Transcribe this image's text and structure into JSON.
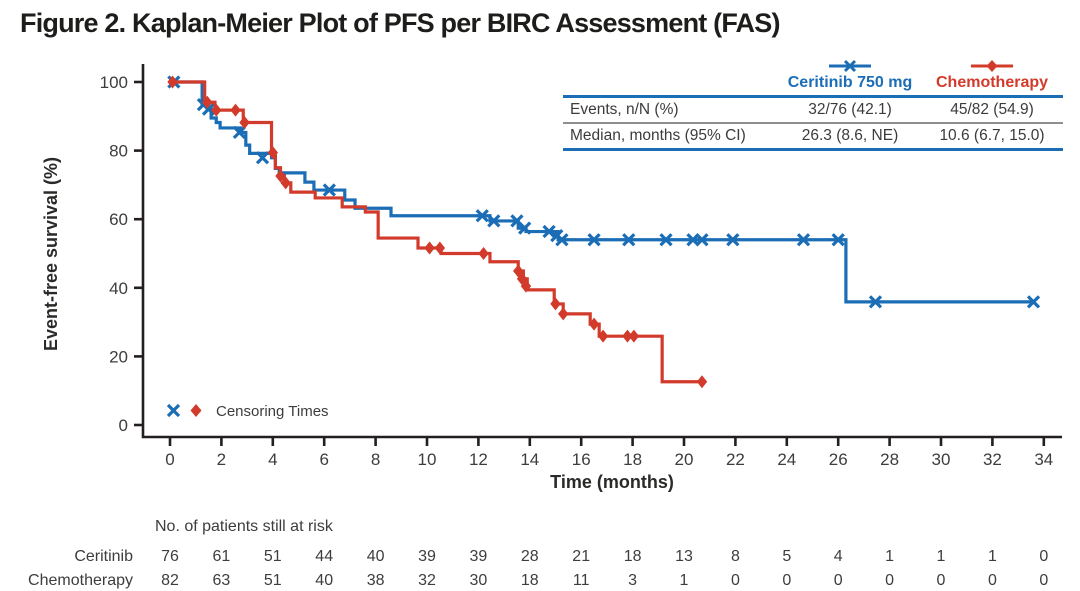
{
  "title": "Figure 2. Kaplan-Meier Plot of PFS per BIRC Assessment (FAS)",
  "colors": {
    "ceritinib": "#1b6db5",
    "chemotherapy": "#d23b2b",
    "axis": "#231f20",
    "text": "#3b3b3b",
    "rule_gray": "#8f8f8f"
  },
  "chart_data": {
    "type": "line",
    "subtype": "kaplan-meier-step",
    "title": "Figure 2. Kaplan-Meier Plot of PFS per BIRC Assessment (FAS)",
    "xlabel": "Time (months)",
    "ylabel": "Event-free survival (%)",
    "xlim": [
      0,
      34
    ],
    "ylim": [
      0,
      100
    ],
    "xticks": [
      0,
      2,
      4,
      6,
      8,
      10,
      12,
      14,
      16,
      18,
      20,
      22,
      24,
      26,
      28,
      30,
      32,
      34
    ],
    "yticks": [
      0,
      20,
      40,
      60,
      80,
      100
    ],
    "grid": false,
    "legend_position": "top-right",
    "censor_legend_label": "Censoring Times",
    "series": [
      {
        "name": "Ceritinib 750 mg",
        "color": "#1b6db5",
        "marker": "x",
        "steps": [
          [
            0,
            100
          ],
          [
            1.25,
            93.4
          ],
          [
            1.45,
            92.1
          ],
          [
            1.6,
            89.5
          ],
          [
            1.8,
            88.2
          ],
          [
            1.95,
            86.6
          ],
          [
            2.75,
            85.3
          ],
          [
            2.95,
            81.6
          ],
          [
            3.1,
            79.2
          ],
          [
            3.95,
            77.9
          ],
          [
            4.1,
            74.8
          ],
          [
            4.25,
            73.5
          ],
          [
            5.25,
            70.8
          ],
          [
            5.6,
            68.5
          ],
          [
            6.8,
            65.6
          ],
          [
            7.2,
            63.2
          ],
          [
            8.6,
            61.0
          ],
          [
            12.45,
            59.5
          ],
          [
            13.55,
            57.4
          ],
          [
            13.85,
            56.4
          ],
          [
            15.1,
            54.0
          ],
          [
            26.3,
            35.9
          ]
        ],
        "end_t": 33.6,
        "censors": [
          [
            0.15,
            100
          ],
          [
            1.3,
            93.4
          ],
          [
            1.5,
            92.1
          ],
          [
            2.7,
            85.3
          ],
          [
            3.6,
            77.9
          ],
          [
            6.2,
            68.5
          ],
          [
            12.15,
            61.0
          ],
          [
            12.6,
            59.5
          ],
          [
            13.5,
            59.5
          ],
          [
            13.8,
            57.4
          ],
          [
            14.75,
            56.4
          ],
          [
            15.05,
            55.2
          ],
          [
            15.25,
            54.0
          ],
          [
            16.5,
            54.0
          ],
          [
            17.85,
            54.0
          ],
          [
            19.3,
            54.0
          ],
          [
            20.35,
            54.0
          ],
          [
            20.7,
            54.0
          ],
          [
            21.9,
            54.0
          ],
          [
            24.65,
            54.0
          ],
          [
            26.0,
            54.0
          ],
          [
            27.45,
            35.9
          ],
          [
            33.6,
            35.9
          ]
        ]
      },
      {
        "name": "Chemotherapy",
        "color": "#d23b2b",
        "marker": "diamond",
        "steps": [
          [
            0,
            100
          ],
          [
            1.35,
            94.1
          ],
          [
            1.75,
            91.8
          ],
          [
            2.85,
            88.2
          ],
          [
            3.95,
            79.4
          ],
          [
            4.1,
            75.0
          ],
          [
            4.3,
            72.6
          ],
          [
            4.45,
            70.6
          ],
          [
            4.7,
            67.9
          ],
          [
            5.65,
            66.2
          ],
          [
            6.7,
            63.6
          ],
          [
            7.6,
            62.1
          ],
          [
            8.1,
            54.5
          ],
          [
            9.65,
            51.6
          ],
          [
            10.55,
            50.0
          ],
          [
            12.45,
            47.6
          ],
          [
            13.55,
            44.9
          ],
          [
            13.75,
            42.6
          ],
          [
            13.9,
            39.4
          ],
          [
            14.95,
            35.3
          ],
          [
            15.3,
            32.4
          ],
          [
            16.35,
            29.4
          ],
          [
            16.7,
            25.9
          ],
          [
            19.15,
            12.6
          ]
        ],
        "end_t": 20.7,
        "censors": [
          [
            0.1,
            100
          ],
          [
            1.45,
            94.1
          ],
          [
            1.8,
            91.8
          ],
          [
            2.55,
            91.8
          ],
          [
            2.9,
            88.2
          ],
          [
            4.0,
            79.4
          ],
          [
            4.3,
            72.6
          ],
          [
            4.5,
            70.6
          ],
          [
            10.1,
            51.6
          ],
          [
            10.5,
            51.6
          ],
          [
            12.2,
            50.0
          ],
          [
            13.55,
            44.9
          ],
          [
            13.7,
            42.6
          ],
          [
            13.85,
            40.5
          ],
          [
            15.0,
            35.3
          ],
          [
            15.3,
            32.4
          ],
          [
            16.5,
            29.4
          ],
          [
            16.85,
            25.9
          ],
          [
            17.8,
            25.9
          ],
          [
            18.05,
            25.9
          ],
          [
            20.7,
            12.6
          ]
        ]
      }
    ]
  },
  "stats_table": {
    "columns": [
      "Ceritinib 750 mg",
      "Chemotherapy"
    ],
    "rows": [
      {
        "label": "Events, n/N (%)",
        "values": [
          "32/76 (42.1)",
          "45/82 (54.9)"
        ]
      },
      {
        "label": "Median, months (95% CI)",
        "values": [
          "26.3 (8.6, NE)",
          "10.6 (6.7, 15.0)"
        ]
      }
    ]
  },
  "risk_table": {
    "caption": "No. of patients still at risk",
    "timepoints": [
      0,
      2,
      4,
      6,
      8,
      10,
      12,
      14,
      16,
      18,
      20,
      22,
      24,
      26,
      28,
      30,
      32,
      34
    ],
    "rows": [
      {
        "label": "Ceritinib",
        "values": [
          "76",
          "61",
          "51",
          "44",
          "40",
          "39",
          "39",
          "28",
          "21",
          "18",
          "13",
          "8",
          "5",
          "4",
          "1",
          "1",
          "1",
          "0"
        ]
      },
      {
        "label": "Chemotherapy",
        "values": [
          "82",
          "63",
          "51",
          "40",
          "38",
          "32",
          "30",
          "18",
          "11",
          "3",
          "1",
          "0",
          "0",
          "0",
          "0",
          "0",
          "0",
          "0"
        ]
      }
    ]
  },
  "axis": {
    "ylabel": "Event-free survival (%)",
    "xlabel": "Time (months)"
  }
}
